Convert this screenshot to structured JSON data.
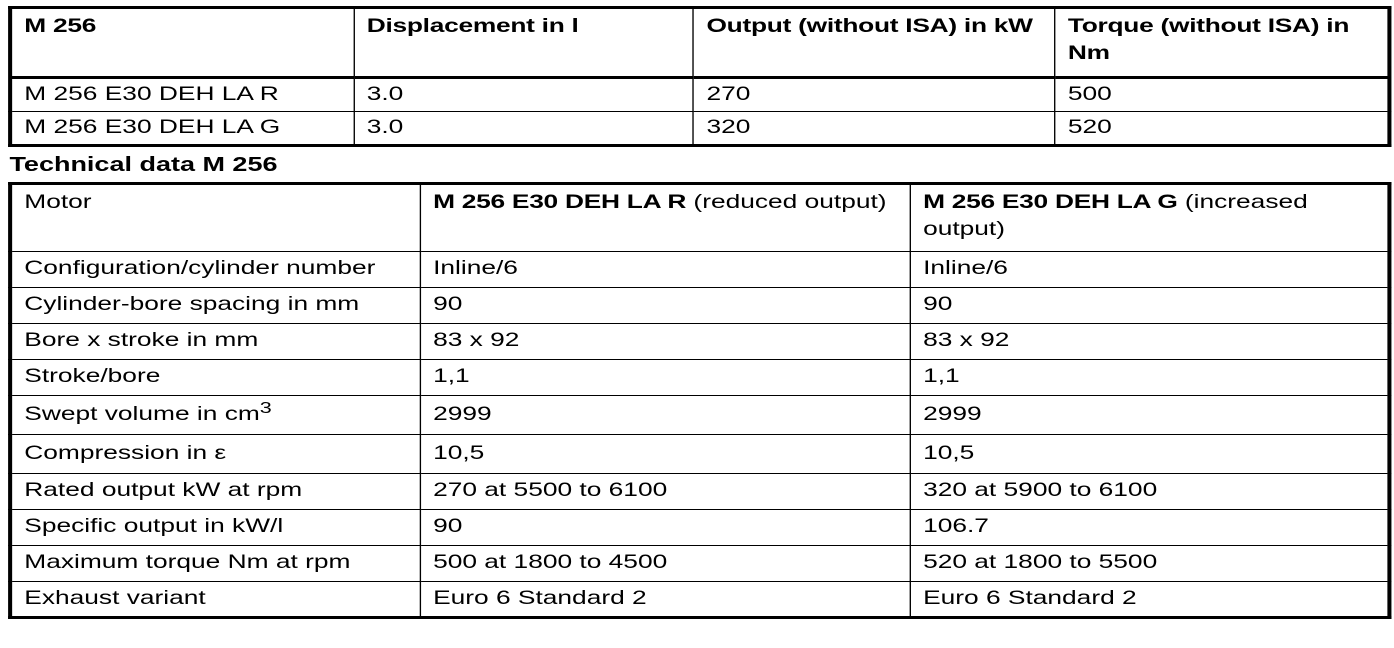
{
  "page": {
    "background": "#ffffff",
    "text_color": "#000000",
    "border_color": "#000000"
  },
  "summary_table": {
    "columns": [
      "M 256",
      "Displacement in l",
      "Output (without ISA) in kW",
      "Torque (without ISA) in\nNm"
    ],
    "rows": [
      [
        "M 256 E30 DEH LA R",
        "3.0",
        "270",
        "500"
      ],
      [
        "M 256 E30 DEH LA G",
        "3.0",
        "320",
        "520"
      ]
    ]
  },
  "section_title": "Technical data M 256",
  "tech_table": {
    "motor_label": "Motor",
    "variants": [
      {
        "name": "M 256 E30 DEH LA R",
        "note": " (reduced output)"
      },
      {
        "name": "M 256 E30 DEH LA G",
        "note": " (increased output)"
      }
    ],
    "rows": [
      {
        "label": "Configuration/cylinder number",
        "values": [
          "Inline/6",
          "Inline/6"
        ]
      },
      {
        "label": "Cylinder-bore spacing in mm",
        "values": [
          "90",
          "90"
        ]
      },
      {
        "label": "Bore x stroke in mm",
        "values": [
          "83 x 92",
          "83 x 92"
        ]
      },
      {
        "label": "Stroke/bore",
        "values": [
          "1,1",
          "1,1"
        ]
      },
      {
        "label": "Swept volume in cm",
        "label_superscript": "3",
        "values": [
          "2999",
          "2999"
        ]
      },
      {
        "label": "Compression in ε",
        "values": [
          "10,5",
          "10,5"
        ]
      },
      {
        "label": "Rated output kW at rpm",
        "values": [
          "270 at 5500 to 6100",
          "320 at 5900 to 6100"
        ]
      },
      {
        "label": "Specific output in kW/l",
        "values": [
          "90",
          "106.7"
        ]
      },
      {
        "label": "Maximum torque Nm at rpm",
        "values": [
          "500 at 1800 to 4500",
          "520 at 1800 to 5500"
        ]
      },
      {
        "label": "Exhaust variant",
        "values": [
          "Euro 6 Standard 2",
          "Euro 6 Standard 2"
        ]
      }
    ]
  }
}
